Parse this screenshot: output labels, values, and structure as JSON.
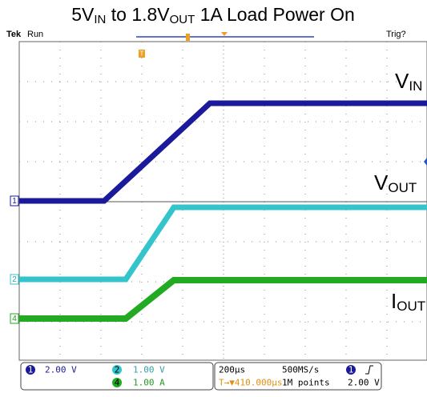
{
  "title": {
    "parts": [
      "5V",
      "IN",
      " to 1.8V",
      "OUT",
      " 1A Load Power On"
    ]
  },
  "status": {
    "brand": "Tek",
    "state": "Run",
    "trigger": "Trig?",
    "trigger_marker": "T"
  },
  "channel_markers": [
    "1",
    "2",
    "4"
  ],
  "annotations": [
    {
      "main": "V",
      "sub": "IN"
    },
    {
      "main": "V",
      "sub": "OUT"
    },
    {
      "main": "I",
      "sub": "OUT"
    }
  ],
  "readout": {
    "ch1": {
      "number": "1",
      "scale": "2.00 V"
    },
    "ch2": {
      "number": "2",
      "scale": "1.00 V"
    },
    "ch4": {
      "number": "4",
      "scale": "1.00 A"
    },
    "timebase": "200µs",
    "sample_rate": "500MS/s",
    "trigger_position": "T→▼410.000µs",
    "record_length": "1M points",
    "trigger_source": "1",
    "trigger_level": "2.00 V"
  }
}
